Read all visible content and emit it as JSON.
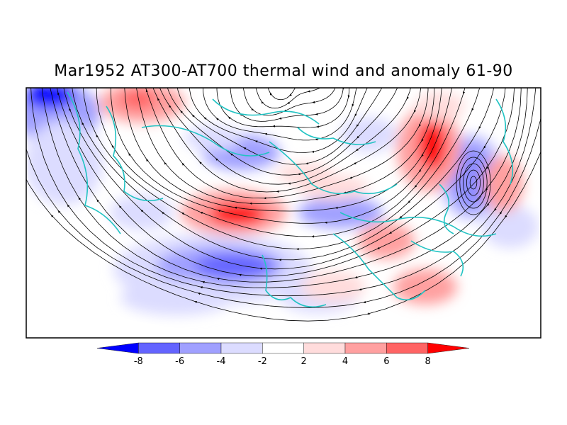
{
  "title": "Mar1952 AT300-AT700 thermal wind and anomaly 61-90",
  "colorbar": {
    "labels": [
      "-8",
      "-6",
      "-4",
      "-2",
      "2",
      "4",
      "6",
      "8"
    ],
    "colors": [
      "#0000ff",
      "#6464ff",
      "#a0a0ff",
      "#dcdcff",
      "#ffffff",
      "#ffdcdc",
      "#ffa0a0",
      "#ff6464",
      "#ff0000"
    ]
  },
  "map": {
    "coastline_color": "#22c3c3",
    "streamline_color": "#000000"
  }
}
